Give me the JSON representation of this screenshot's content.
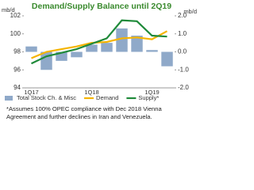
{
  "chart_data": {
    "type": "bar-line",
    "title": "Demand/Supply Balance until 2Q19",
    "y_label": "mb/d",
    "y2_label": "mb/d",
    "categories": [
      "1Q17",
      null,
      null,
      null,
      "1Q18",
      null,
      null,
      null,
      "1Q19",
      null
    ],
    "ylim": [
      94,
      102
    ],
    "yticks": [
      94,
      96,
      98,
      100,
      102
    ],
    "y2lim": [
      -2,
      2
    ],
    "y2ticks": [
      {
        "value": -2,
        "label": "-2.0"
      },
      {
        "value": -1,
        "label": "-1.0"
      },
      {
        "value": 0,
        "label": "0.0"
      },
      {
        "value": 1,
        "label": "1.0"
      },
      {
        "value": 2,
        "label": "2.0"
      }
    ],
    "series": [
      {
        "name": "Total Stock Ch. & Misc",
        "kind": "bar",
        "axis": "y2",
        "color": "#8fa9c9",
        "values": [
          0.3,
          -1.0,
          -0.5,
          -0.3,
          0.4,
          0.5,
          1.3,
          0.9,
          0.1,
          -0.8
        ]
      },
      {
        "name": "Demand",
        "kind": "line",
        "color": "#f5b400",
        "values": [
          97.3,
          98.0,
          98.3,
          98.6,
          99.0,
          99.1,
          99.5,
          99.6,
          99.4,
          100.3
        ]
      },
      {
        "name": "Supply*",
        "kind": "line",
        "color": "#1f8a3a",
        "values": [
          96.7,
          97.5,
          97.9,
          98.3,
          98.9,
          99.5,
          101.5,
          101.4,
          99.8,
          99.7
        ]
      }
    ],
    "footnote": [
      "*Assumes 100% OPEC compliance with Dec 2018 Vienna",
      "Agreement and further declines in Iran and Venezuela."
    ]
  }
}
